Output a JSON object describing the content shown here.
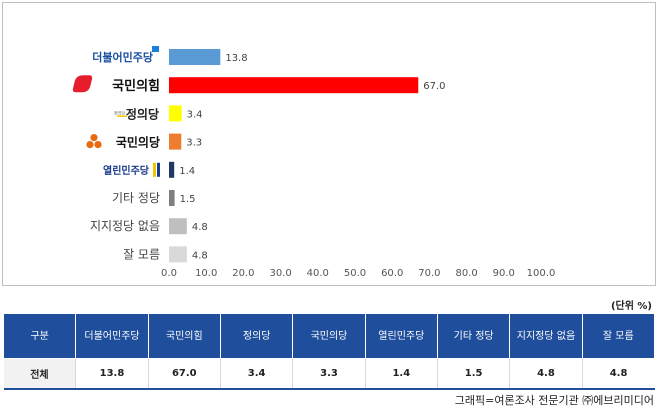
{
  "chart_data": {
    "type": "bar",
    "orientation": "horizontal",
    "categories": [
      "더불어민주당",
      "국민의힘",
      "정의당",
      "국민의당",
      "열린민주당",
      "기타 정당",
      "지지정당 없음",
      "잘 모름"
    ],
    "values": [
      13.8,
      67.0,
      3.4,
      3.3,
      1.4,
      1.5,
      4.8,
      4.8
    ],
    "value_labels": [
      "13.8",
      "67.0",
      "3.4",
      "3.3",
      "1.4",
      "1.5",
      "4.8",
      "4.8"
    ],
    "bar_colors": [
      "#5b9bd5",
      "#ff0000",
      "#ffff00",
      "#ed7d31",
      "#1f3864",
      "#7f7f7f",
      "#bfbfbf",
      "#d9d9d9"
    ],
    "label_style": [
      "logo",
      "logo",
      "logo",
      "logo",
      "logo",
      "text",
      "text",
      "text"
    ],
    "xlim": [
      0,
      100
    ],
    "xticks": [
      "0.0",
      "10.0",
      "20.0",
      "30.0",
      "40.0",
      "50.0",
      "60.0",
      "70.0",
      "80.0",
      "90.0",
      "100.0"
    ],
    "grid": false,
    "title": "",
    "xlabel": "",
    "ylabel": ""
  },
  "logos": {
    "minju_color": "#1a4fa0",
    "minju_flag_color": "#1a7fd9",
    "ppp_color": "#e61e2b",
    "justice_color": "#222222",
    "justice_small_text": "정의당",
    "peoples_color": "#e86a10",
    "open_color": "#1a3a8a"
  },
  "unit_note": "(단위 %)",
  "table": {
    "headers": [
      "구분",
      "더불어민주당",
      "국민의힘",
      "정의당",
      "국민의당",
      "열린민주당",
      "기타 정당",
      "지지정당 없음",
      "잘 모름"
    ],
    "rows": [
      [
        "전체",
        "13.8",
        "67.0",
        "3.4",
        "3.3",
        "1.4",
        "1.5",
        "4.8",
        "4.8"
      ]
    ]
  },
  "credit": "그래픽=여론조사 전문기관 ㈜에브리미디어"
}
